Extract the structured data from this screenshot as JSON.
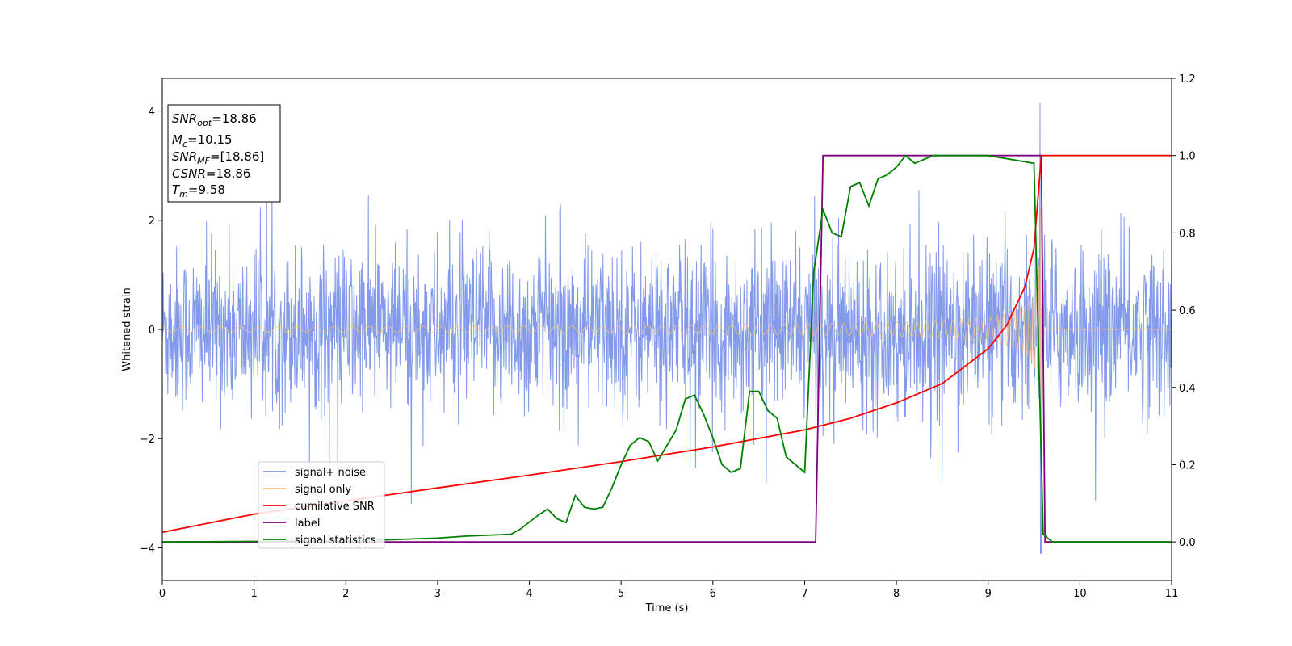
{
  "chart_data": {
    "type": "line",
    "xlabel": "Time (s)",
    "ylabel": "Whitened strain",
    "xlim": [
      0,
      11
    ],
    "ylim_left": [
      -4.6,
      4.6
    ],
    "ylim_right": [
      -0.1,
      1.2
    ],
    "x_ticks": [
      "0",
      "1",
      "2",
      "3",
      "4",
      "5",
      "6",
      "7",
      "8",
      "9",
      "10",
      "11"
    ],
    "y_left_ticks": [
      "−4",
      "−2",
      "0",
      "2",
      "4"
    ],
    "y_right_ticks": [
      "0.0",
      "0.2",
      "0.4",
      "0.6",
      "0.8",
      "1.0",
      "1.2"
    ],
    "grid": false,
    "legend_position": "lower-left",
    "info_box": {
      "snr_opt": {
        "name": "SNR",
        "sub": "opt",
        "value": "=18.86"
      },
      "mc": {
        "name": "M",
        "sub": "c",
        "value": "=10.15"
      },
      "snr_mf": {
        "name": "SNR",
        "sub": "MF",
        "value": "=[18.86]"
      },
      "csnr": {
        "name": "CSNR",
        "value": "=18.86"
      },
      "tm": {
        "name": "T",
        "sub": "m",
        "value": "=9.58"
      }
    },
    "series": [
      {
        "name": "signal+ noise",
        "axis": "left",
        "color": "#7b95e8",
        "description_values": {
          "noise_std": 0.75,
          "spike_at_merger": 4.15,
          "min_at_merger": -4.1
        },
        "x": [
          0,
          11
        ]
      },
      {
        "name": "signal only",
        "axis": "left",
        "color": "#ffc36e",
        "envelope": {
          "t_merger": 9.58,
          "amp_start": 0.05,
          "amp_peak": 3.0
        },
        "x": [
          0,
          9.58,
          11
        ]
      },
      {
        "name": "cumilative SNR",
        "axis": "right",
        "color": "#ff0000",
        "x": [
          0,
          1,
          2,
          3,
          4,
          5,
          6,
          7,
          7.5,
          8,
          8.5,
          9,
          9.2,
          9.4,
          9.5,
          9.58,
          9.6,
          11
        ],
        "y": [
          0.025,
          0.072,
          0.106,
          0.14,
          0.173,
          0.208,
          0.246,
          0.29,
          0.32,
          0.36,
          0.41,
          0.5,
          0.56,
          0.66,
          0.76,
          1.0,
          1.0,
          1.0
        ]
      },
      {
        "name": "label",
        "axis": "right",
        "color": "#800080",
        "x": [
          0,
          7.12,
          7.2,
          9.58,
          9.62,
          11
        ],
        "y": [
          0,
          0,
          1.0,
          1.0,
          0,
          0
        ]
      },
      {
        "name": "signal statistics",
        "axis": "right",
        "color": "#008000",
        "x": [
          0,
          2,
          2.5,
          3,
          3.3,
          3.8,
          3.9,
          4.1,
          4.2,
          4.3,
          4.4,
          4.5,
          4.6,
          4.7,
          4.8,
          4.9,
          5.0,
          5.1,
          5.2,
          5.3,
          5.4,
          5.5,
          5.6,
          5.7,
          5.8,
          5.9,
          6.0,
          6.1,
          6.2,
          6.3,
          6.4,
          6.5,
          6.6,
          6.7,
          6.8,
          6.9,
          7.0,
          7.1,
          7.2,
          7.3,
          7.4,
          7.5,
          7.6,
          7.7,
          7.8,
          7.9,
          8.0,
          8.1,
          8.2,
          8.3,
          8.4,
          8.5,
          9.0,
          9.5,
          9.6,
          9.7,
          11
        ],
        "y": [
          0,
          0.003,
          0.006,
          0.01,
          0.015,
          0.02,
          0.033,
          0.07,
          0.085,
          0.06,
          0.05,
          0.12,
          0.09,
          0.085,
          0.09,
          0.14,
          0.2,
          0.25,
          0.27,
          0.26,
          0.21,
          0.25,
          0.29,
          0.37,
          0.38,
          0.33,
          0.27,
          0.2,
          0.18,
          0.19,
          0.39,
          0.39,
          0.34,
          0.32,
          0.22,
          0.2,
          0.18,
          0.7,
          0.86,
          0.8,
          0.79,
          0.92,
          0.93,
          0.87,
          0.94,
          0.95,
          0.97,
          1.0,
          0.98,
          0.99,
          1.0,
          1.0,
          1.0,
          0.98,
          0.02,
          0.0,
          0.0
        ]
      }
    ]
  }
}
